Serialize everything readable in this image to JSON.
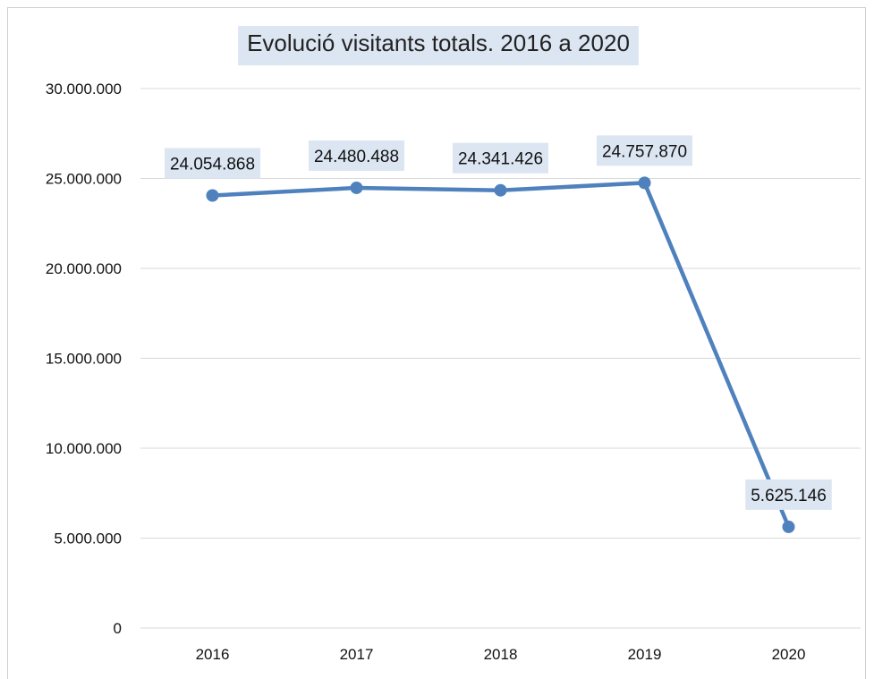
{
  "chart_data": {
    "type": "line",
    "title": "Evolució visitants totals. 2016 a 2020",
    "categories": [
      "2016",
      "2017",
      "2018",
      "2019",
      "2020"
    ],
    "series": [
      {
        "values": [
          24054868,
          24480488,
          24341426,
          24757870,
          5625146
        ],
        "data_labels": [
          "24.054.868",
          "24.480.488",
          "24.341.426",
          "24.757.870",
          "5.625.146"
        ],
        "color": "#4f81bd"
      }
    ],
    "ylim": [
      0,
      30000000
    ],
    "y_ticks": [
      0,
      5000000,
      10000000,
      15000000,
      20000000,
      25000000,
      30000000
    ],
    "y_tick_labels": [
      "0",
      "5.000.000",
      "10.000.000",
      "15.000.000",
      "20.000.000",
      "25.000.000",
      "30.000.000"
    ],
    "grid": true,
    "legend": "none",
    "colors": {
      "line": "#4f81bd",
      "label_bg": "#dce6f2",
      "title_bg": "#dce6f2",
      "grid": "#d9d9d9"
    }
  }
}
